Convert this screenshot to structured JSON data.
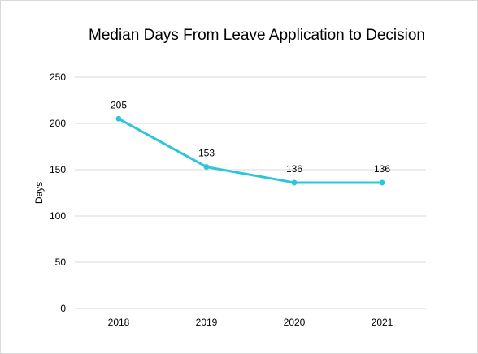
{
  "chart_data": {
    "type": "line",
    "title": "Median Days From Leave Application to Decision",
    "xlabel": "",
    "ylabel": "Days",
    "categories": [
      "2018",
      "2019",
      "2020",
      "2021"
    ],
    "series": [
      {
        "values": [
          205,
          153,
          136,
          136
        ],
        "color": "#2cc5dc"
      }
    ],
    "data_labels": [
      "205",
      "153",
      "136",
      "136"
    ],
    "y_ticks": [
      0,
      50,
      100,
      150,
      200,
      250
    ],
    "ylim": [
      0,
      250
    ],
    "grid": true,
    "legend": "none",
    "colors": {
      "line": "#2cc5dc",
      "grid": "#d9d9d9",
      "text": "#000000"
    }
  }
}
